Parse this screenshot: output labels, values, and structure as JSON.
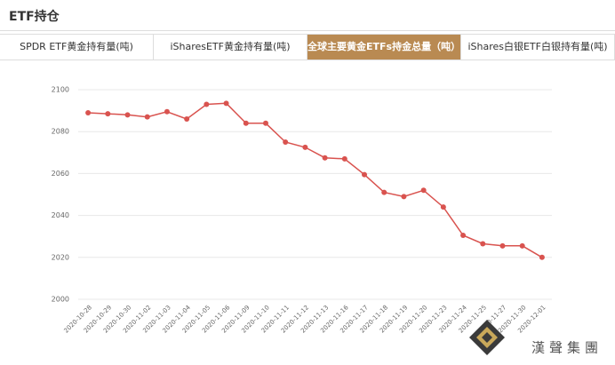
{
  "title": "ETF持仓",
  "tabs": [
    "SPDR ETF黄金持有量(吨)",
    "iSharesETF黄金持有量(吨)",
    "全球主要黄金ETFs持金总量（吨）",
    "iShares白银ETF白银持有量(吨)"
  ],
  "active_tab": 2,
  "watermark": "漢聲集團",
  "chart_data": {
    "type": "line",
    "categories": [
      "2020-10-28",
      "2020-10-29",
      "2020-10-30",
      "2020-11-02",
      "2020-11-03",
      "2020-11-04",
      "2020-11-05",
      "2020-11-06",
      "2020-11-09",
      "2020-11-10",
      "2020-11-11",
      "2020-11-12",
      "2020-11-13",
      "2020-11-16",
      "2020-11-17",
      "2020-11-18",
      "2020-11-19",
      "2020-11-20",
      "2020-11-23",
      "2020-11-24",
      "2020-11-25",
      "2020-11-27",
      "2020-11-30",
      "2020-12-01"
    ],
    "values": [
      2089,
      2088.5,
      2088,
      2087,
      2089.5,
      2086,
      2093,
      2093.5,
      2084,
      2084,
      2075,
      2072.5,
      2067.5,
      2067,
      2059.5,
      2051,
      2049,
      2052,
      2044,
      2030.5,
      2026.5,
      2025.5,
      2025.5,
      2020
    ],
    "color": "#d9534f",
    "ylim": [
      2000,
      2100
    ],
    "yticks": [
      2000,
      2020,
      2040,
      2060,
      2080,
      2100
    ],
    "grid": true
  }
}
